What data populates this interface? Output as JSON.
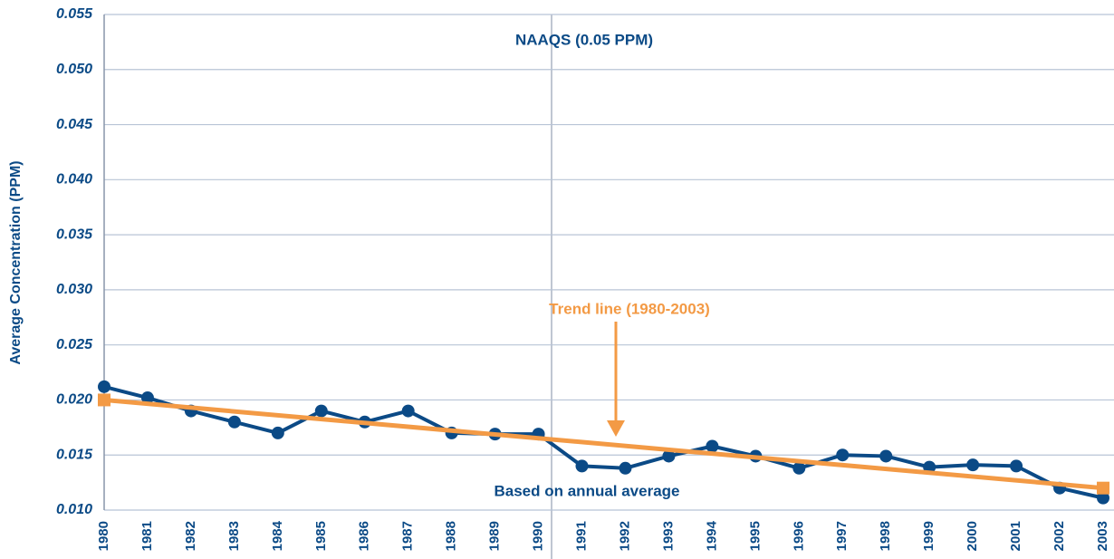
{
  "chart_data": {
    "type": "line",
    "y_label": "Average Concentration (PPM)",
    "annotations": [
      "NAAQS (0.05 PPM)",
      "Trend line (1980-2003)",
      "Based on annual average"
    ],
    "categories": [
      "1980",
      "1981",
      "1982",
      "1983",
      "1984",
      "1985",
      "1986",
      "1987",
      "1988",
      "1989",
      "1990",
      "1991",
      "1992",
      "1993",
      "1994",
      "1995",
      "1996",
      "1997",
      "1998",
      "1999",
      "2000",
      "2001",
      "2002",
      "2003"
    ],
    "series": [
      {
        "color": "#0b4a86",
        "values": [
          0.0212,
          0.0202,
          0.019,
          0.018,
          0.017,
          0.019,
          0.018,
          0.019,
          0.017,
          0.0169,
          0.0169,
          0.014,
          0.0138,
          0.0149,
          0.0158,
          0.0149,
          0.0138,
          0.015,
          0.0149,
          0.0139,
          0.0141,
          0.014,
          0.012,
          0.0111
        ]
      }
    ],
    "trend": {
      "color": "#f39a45",
      "categories": [
        "1980",
        "2003"
      ],
      "values": [
        0.02,
        0.012
      ]
    },
    "ylim": [
      0.01,
      0.055
    ],
    "yticks": [
      {
        "value": 0.01,
        "label": "0.010"
      },
      0.015,
      {
        "value": 0.02,
        "label": "0.020"
      },
      0.025,
      {
        "value": 0.03,
        "label": "0.030"
      },
      0.035,
      {
        "value": 0.04,
        "label": "0.040"
      },
      0.045,
      {
        "value": 0.05,
        "label": "0.050"
      },
      0.055
    ],
    "grid": true
  }
}
